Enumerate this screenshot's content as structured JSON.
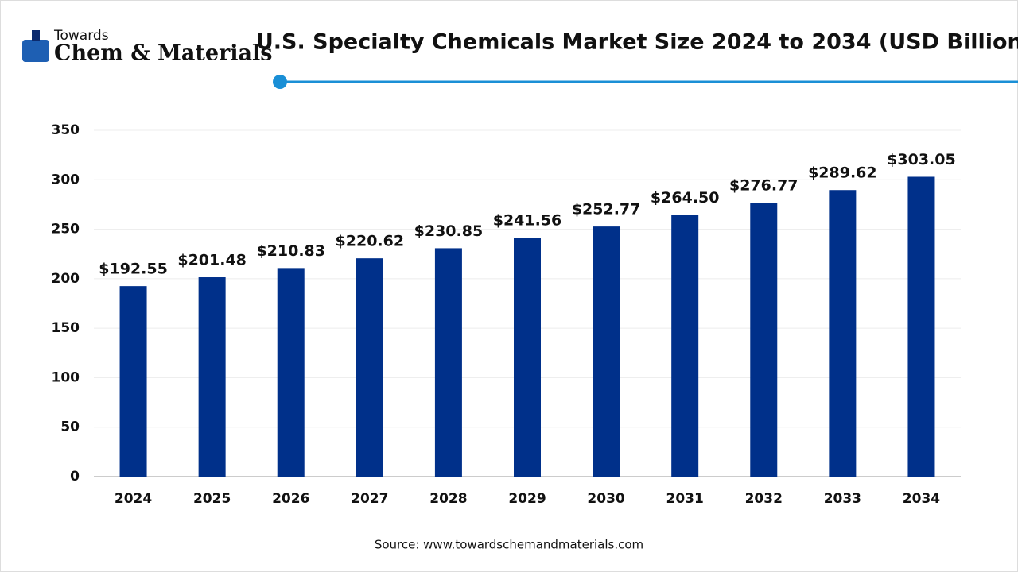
{
  "logo": {
    "top": "Towards",
    "name": "Chem & Materials"
  },
  "chart_data": {
    "type": "bar",
    "title": "U.S. Specialty Chemicals Market Size 2024 to 2034 (USD Billion)",
    "categories": [
      "2024",
      "2025",
      "2026",
      "2027",
      "2028",
      "2029",
      "2030",
      "2031",
      "2032",
      "2033",
      "2034"
    ],
    "values": [
      192.55,
      201.48,
      210.83,
      220.62,
      230.85,
      241.56,
      252.77,
      264.5,
      276.77,
      289.62,
      303.05
    ],
    "value_labels": [
      "$192.55",
      "$201.48",
      "$210.83",
      "$220.62",
      "$230.85",
      "$241.56",
      "$252.77",
      "$264.50",
      "$276.77",
      "$289.62",
      "$303.05"
    ],
    "color": "#00308a",
    "ylim": [
      0,
      350
    ],
    "yticks": [
      0,
      50,
      100,
      150,
      200,
      250,
      300,
      350
    ],
    "grid": true,
    "source": "Source: www.towardschemandmaterials.com"
  }
}
